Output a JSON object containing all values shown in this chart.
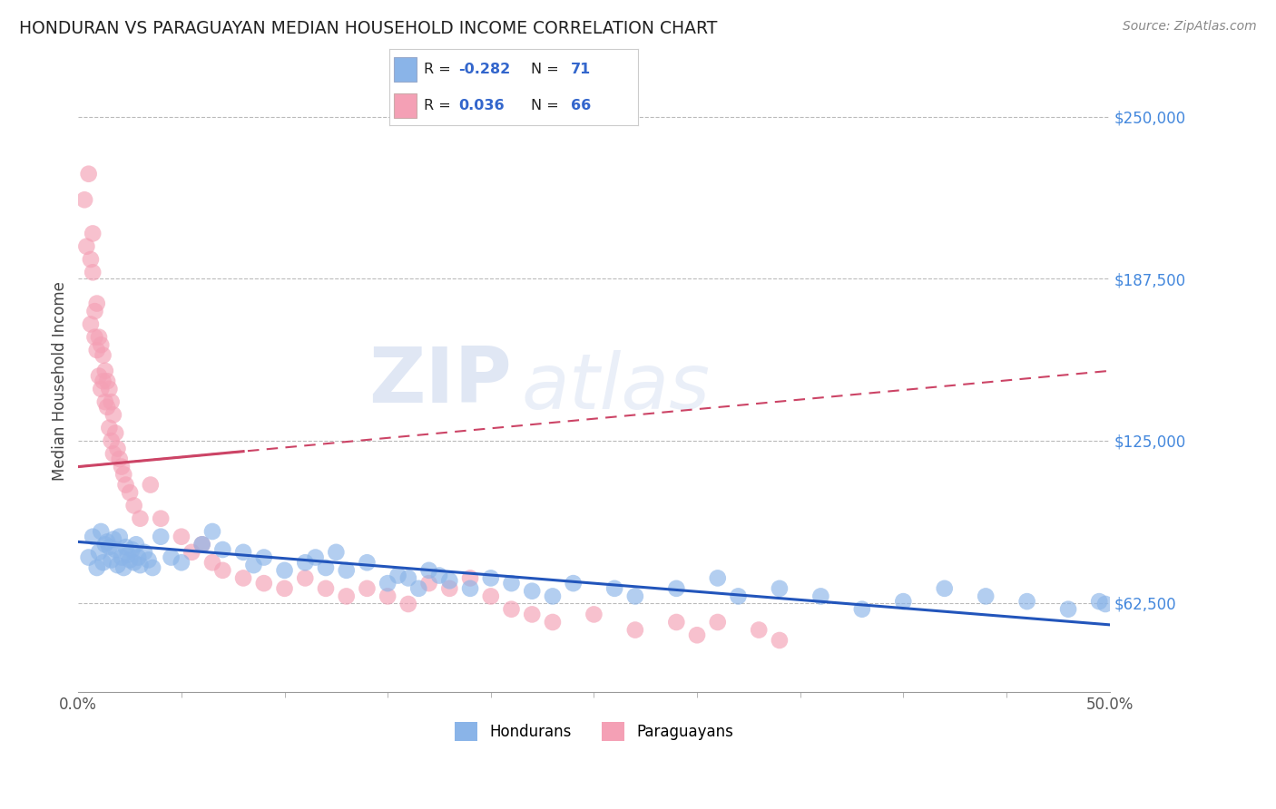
{
  "title": "HONDURAN VS PARAGUAYAN MEDIAN HOUSEHOLD INCOME CORRELATION CHART",
  "source": "Source: ZipAtlas.com",
  "ylabel": "Median Household Income",
  "yticks": [
    62500,
    125000,
    187500,
    250000
  ],
  "ytick_labels": [
    "$62,500",
    "$125,000",
    "$187,500",
    "$250,000"
  ],
  "xmin": 0.0,
  "xmax": 0.5,
  "ymin": 28000,
  "ymax": 268000,
  "blue_color": "#8ab4e8",
  "pink_color": "#f4a0b5",
  "blue_line_color": "#2255bb",
  "pink_line_color": "#cc4466",
  "legend_label_blue": "Hondurans",
  "legend_label_pink": "Paraguayans",
  "watermark_zip": "ZIP",
  "watermark_atlas": "atlas",
  "blue_scatter_x": [
    0.005,
    0.007,
    0.009,
    0.01,
    0.011,
    0.012,
    0.013,
    0.014,
    0.015,
    0.016,
    0.017,
    0.018,
    0.019,
    0.02,
    0.021,
    0.022,
    0.023,
    0.024,
    0.025,
    0.026,
    0.027,
    0.028,
    0.029,
    0.03,
    0.032,
    0.034,
    0.036,
    0.04,
    0.045,
    0.05,
    0.06,
    0.065,
    0.07,
    0.08,
    0.085,
    0.09,
    0.1,
    0.11,
    0.115,
    0.12,
    0.125,
    0.13,
    0.14,
    0.15,
    0.155,
    0.16,
    0.165,
    0.17,
    0.175,
    0.18,
    0.19,
    0.2,
    0.21,
    0.22,
    0.23,
    0.24,
    0.26,
    0.27,
    0.29,
    0.31,
    0.32,
    0.34,
    0.36,
    0.38,
    0.4,
    0.42,
    0.44,
    0.46,
    0.48,
    0.495,
    0.498
  ],
  "blue_scatter_y": [
    80000,
    88000,
    76000,
    82000,
    90000,
    78000,
    85000,
    86000,
    84000,
    79000,
    87000,
    83000,
    77000,
    88000,
    80000,
    76000,
    84000,
    81000,
    79000,
    83000,
    78000,
    85000,
    80000,
    77000,
    82000,
    79000,
    76000,
    88000,
    80000,
    78000,
    85000,
    90000,
    83000,
    82000,
    77000,
    80000,
    75000,
    78000,
    80000,
    76000,
    82000,
    75000,
    78000,
    70000,
    73000,
    72000,
    68000,
    75000,
    73000,
    71000,
    68000,
    72000,
    70000,
    67000,
    65000,
    70000,
    68000,
    65000,
    68000,
    72000,
    65000,
    68000,
    65000,
    60000,
    63000,
    68000,
    65000,
    63000,
    60000,
    63000,
    62000
  ],
  "pink_scatter_x": [
    0.003,
    0.004,
    0.005,
    0.006,
    0.006,
    0.007,
    0.007,
    0.008,
    0.008,
    0.009,
    0.009,
    0.01,
    0.01,
    0.011,
    0.011,
    0.012,
    0.012,
    0.013,
    0.013,
    0.014,
    0.014,
    0.015,
    0.015,
    0.016,
    0.016,
    0.017,
    0.017,
    0.018,
    0.019,
    0.02,
    0.021,
    0.022,
    0.023,
    0.025,
    0.027,
    0.03,
    0.035,
    0.04,
    0.05,
    0.055,
    0.06,
    0.065,
    0.07,
    0.08,
    0.09,
    0.1,
    0.11,
    0.12,
    0.13,
    0.14,
    0.15,
    0.16,
    0.17,
    0.18,
    0.19,
    0.2,
    0.21,
    0.22,
    0.23,
    0.25,
    0.27,
    0.29,
    0.3,
    0.31,
    0.33,
    0.34
  ],
  "pink_scatter_y": [
    218000,
    200000,
    228000,
    195000,
    170000,
    205000,
    190000,
    175000,
    165000,
    178000,
    160000,
    165000,
    150000,
    162000,
    145000,
    158000,
    148000,
    152000,
    140000,
    148000,
    138000,
    145000,
    130000,
    140000,
    125000,
    135000,
    120000,
    128000,
    122000,
    118000,
    115000,
    112000,
    108000,
    105000,
    100000,
    95000,
    108000,
    95000,
    88000,
    82000,
    85000,
    78000,
    75000,
    72000,
    70000,
    68000,
    72000,
    68000,
    65000,
    68000,
    65000,
    62000,
    70000,
    68000,
    72000,
    65000,
    60000,
    58000,
    55000,
    58000,
    52000,
    55000,
    50000,
    55000,
    52000,
    48000
  ],
  "blue_line_x0": 0.0,
  "blue_line_x1": 0.5,
  "blue_line_y0": 86000,
  "blue_line_y1": 54000,
  "pink_line_x0": 0.0,
  "pink_line_x1": 0.5,
  "pink_line_y0": 115000,
  "pink_line_y1": 152000
}
